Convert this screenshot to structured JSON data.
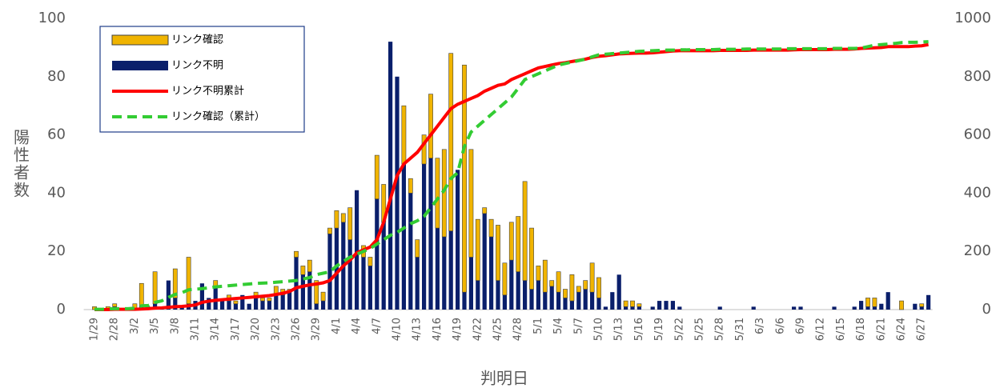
{
  "chart_data": {
    "type": "bar",
    "x_label": "判明日",
    "y_label": "陽性者数",
    "categories": [
      "1/29",
      null,
      null,
      "2/28",
      null,
      null,
      "3/2",
      null,
      null,
      "3/5",
      null,
      null,
      "3/8",
      null,
      null,
      "3/11",
      null,
      null,
      "3/14",
      null,
      null,
      "3/17",
      null,
      null,
      "3/20",
      null,
      null,
      "3/23",
      null,
      null,
      "3/26",
      null,
      null,
      "3/29",
      null,
      null,
      "4/1",
      null,
      null,
      "4/4",
      null,
      null,
      "4/7",
      null,
      null,
      "4/10",
      null,
      null,
      "4/13",
      null,
      null,
      "4/16",
      null,
      null,
      "4/19",
      null,
      null,
      "4/22",
      null,
      null,
      "4/25",
      null,
      null,
      "4/28",
      null,
      null,
      "5/1",
      null,
      null,
      "5/4",
      null,
      null,
      "5/7",
      null,
      null,
      "5/10",
      null,
      null,
      "5/13",
      null,
      null,
      "5/16",
      null,
      null,
      "5/19",
      null,
      null,
      "5/22",
      null,
      null,
      "5/25",
      null,
      null,
      "5/28",
      null,
      null,
      "5/31",
      null,
      null,
      "6/3",
      null,
      null,
      "6/6",
      null,
      null,
      "6/9",
      null,
      null,
      "6/12",
      null,
      null,
      "6/15",
      null,
      null,
      "6/18",
      null,
      null,
      "6/21",
      null,
      null,
      "6/24",
      null,
      null,
      "6/27",
      null
    ],
    "series": [
      {
        "name": "リンク確認",
        "type": "bar",
        "color": "#f0b400",
        "values": [
          1,
          0,
          1,
          1,
          0,
          0,
          2,
          8,
          0,
          11,
          0,
          0,
          10,
          0,
          16,
          0,
          0,
          0,
          2,
          0,
          2,
          1,
          0,
          0,
          2,
          1,
          1,
          3,
          2,
          1,
          2,
          3,
          4,
          8,
          3,
          2,
          6,
          3,
          11,
          0,
          4,
          3,
          15,
          13,
          0,
          0,
          20,
          5,
          6,
          10,
          22,
          24,
          30,
          61,
          0,
          78,
          37,
          21,
          2,
          6,
          19,
          11,
          13,
          19,
          34,
          21,
          5,
          11,
          2,
          7,
          3,
          9,
          2,
          3,
          10,
          7,
          0,
          0,
          0,
          2,
          2,
          1,
          0,
          0,
          0,
          0,
          0,
          0,
          0,
          0,
          0,
          0,
          0,
          0,
          0,
          0,
          0,
          0,
          0,
          0,
          0,
          0,
          0,
          0,
          0,
          0,
          0,
          0,
          0,
          0,
          0,
          0,
          0,
          0,
          0,
          3,
          3,
          0,
          0,
          0,
          3,
          0,
          0,
          1,
          0
        ]
      },
      {
        "name": "リンク不明",
        "type": "bar",
        "color": "#0a1f6b",
        "values": [
          0,
          0,
          0,
          1,
          0,
          0,
          0,
          1,
          1,
          2,
          1,
          10,
          4,
          1,
          2,
          3,
          9,
          4,
          8,
          3,
          3,
          2,
          5,
          2,
          4,
          3,
          3,
          5,
          5,
          6,
          18,
          12,
          13,
          2,
          3,
          26,
          28,
          30,
          24,
          41,
          18,
          15,
          38,
          30,
          92,
          80,
          50,
          40,
          18,
          50,
          52,
          28,
          25,
          27,
          48,
          6,
          18,
          10,
          33,
          25,
          10,
          5,
          17,
          13,
          10,
          7,
          10,
          6,
          8,
          6,
          4,
          3,
          6,
          7,
          6,
          4,
          1,
          6,
          12,
          1,
          1,
          1,
          0,
          1,
          3,
          3,
          3,
          1,
          0,
          0,
          0,
          0,
          0,
          1,
          0,
          0,
          0,
          0,
          1,
          0,
          0,
          0,
          0,
          0,
          1,
          1,
          0,
          0,
          0,
          0,
          1,
          0,
          0,
          1,
          3,
          1,
          1,
          2,
          6,
          0,
          0,
          0,
          2,
          1,
          5
        ]
      },
      {
        "name": "リンク不明累計",
        "type": "line",
        "axis": "y2",
        "color": "#ff0000",
        "values": [
          0,
          0,
          0,
          1,
          1,
          1,
          1,
          2,
          3,
          5,
          6,
          8,
          10,
          11,
          13,
          16,
          25,
          29,
          32,
          34,
          36,
          38,
          40,
          42,
          44,
          46,
          48,
          52,
          56,
          62,
          75,
          80,
          85,
          88,
          92,
          100,
          125,
          150,
          170,
          195,
          205,
          215,
          240,
          300,
          380,
          460,
          500,
          520,
          540,
          570,
          600,
          630,
          660,
          690,
          705,
          715,
          725,
          735,
          750,
          760,
          770,
          775,
          790,
          800,
          810,
          820,
          830,
          835,
          840,
          845,
          848,
          852,
          856,
          860,
          866,
          870,
          872,
          875,
          878,
          879,
          880,
          881,
          881,
          882,
          884,
          886,
          888,
          889,
          889,
          889,
          889,
          889,
          889,
          890,
          890,
          890,
          890,
          890,
          891,
          891,
          891,
          891,
          891,
          891,
          892,
          893,
          893,
          893,
          893,
          893,
          894,
          894,
          894,
          895,
          897,
          898,
          899,
          900,
          903,
          903,
          903,
          903,
          905,
          906,
          910
        ]
      },
      {
        "name": "リンク確認（累計）",
        "type": "line",
        "axis": "y2",
        "dashed": true,
        "color": "#33cc33",
        "values": [
          1,
          1,
          2,
          3,
          3,
          3,
          5,
          13,
          14,
          25,
          30,
          42,
          52,
          58,
          68,
          70,
          72,
          75,
          78,
          80,
          82,
          84,
          86,
          88,
          90,
          91,
          92,
          94,
          96,
          98,
          100,
          105,
          110,
          120,
          125,
          130,
          150,
          165,
          180,
          190,
          200,
          210,
          225,
          240,
          255,
          265,
          280,
          295,
          305,
          320,
          350,
          380,
          410,
          450,
          470,
          560,
          610,
          630,
          650,
          670,
          690,
          710,
          730,
          760,
          790,
          800,
          810,
          820,
          830,
          840,
          845,
          850,
          855,
          860,
          868,
          875,
          877,
          879,
          881,
          883,
          885,
          887,
          888,
          889,
          890,
          891,
          891,
          892,
          892,
          893,
          893,
          893,
          893,
          894,
          894,
          894,
          894,
          895,
          895,
          895,
          895,
          895,
          895,
          896,
          896,
          896,
          896,
          896,
          896,
          896,
          897,
          897,
          897,
          897,
          898,
          903,
          908,
          910,
          912,
          914,
          917,
          918,
          918,
          919,
          920
        ]
      }
    ],
    "ylim": [
      0,
      100
    ],
    "yticks": [
      0,
      20,
      40,
      60,
      80,
      100
    ],
    "y2lim": [
      0,
      1000
    ],
    "y2ticks": [
      0,
      200,
      400,
      600,
      800,
      1000
    ],
    "legend": "upper left"
  }
}
